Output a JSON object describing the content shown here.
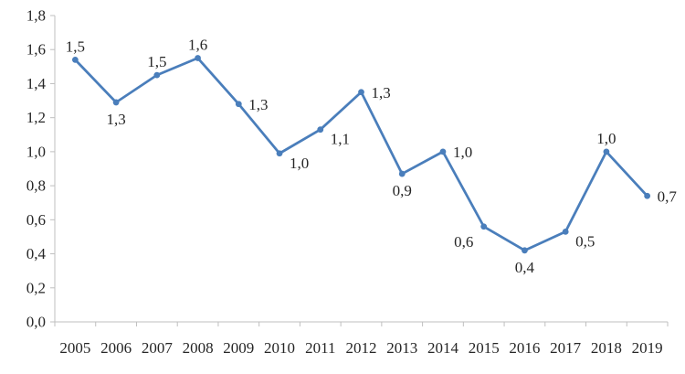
{
  "chart_data": {
    "type": "line",
    "title": "",
    "xlabel": "",
    "ylabel": "",
    "x": [
      "2005",
      "2006",
      "2007",
      "2008",
      "2009",
      "2010",
      "2011",
      "2012",
      "2013",
      "2014",
      "2015",
      "2016",
      "2017",
      "2018",
      "2019"
    ],
    "series": [
      {
        "name": "series-1",
        "values": [
          1.54,
          1.29,
          1.45,
          1.55,
          1.28,
          0.99,
          1.13,
          1.35,
          0.87,
          1.0,
          0.56,
          0.42,
          0.53,
          1.0,
          0.74
        ],
        "labels": [
          "1,5",
          "1,3",
          "1,5",
          "1,6",
          "1,3",
          "1,0",
          "1,1",
          "1,3",
          "0,9",
          "1,0",
          "0,6",
          "0,4",
          "0,5",
          "1,0",
          "0,7"
        ],
        "label_placements": [
          "above",
          "below",
          "above",
          "above",
          "right",
          "below-right",
          "below-right",
          "right",
          "below",
          "right",
          "below-left",
          "below",
          "below-right",
          "above",
          "right"
        ],
        "color": "#4a7ebb",
        "marker": "circle"
      }
    ],
    "ylim": [
      0,
      1.8
    ],
    "y_ticks": [
      {
        "value": 0.0,
        "label": "0,0"
      },
      {
        "value": 0.2,
        "label": "0,2"
      },
      {
        "value": 0.4,
        "label": "0,4"
      },
      {
        "value": 0.6,
        "label": "0,6"
      },
      {
        "value": 0.8,
        "label": "0,8"
      },
      {
        "value": 1.0,
        "label": "1,0"
      },
      {
        "value": 1.2,
        "label": "1,2"
      },
      {
        "value": 1.4,
        "label": "1,4"
      },
      {
        "value": 1.6,
        "label": "1,6"
      },
      {
        "value": 1.8,
        "label": "1,8"
      }
    ],
    "grid": false,
    "legend": "none"
  },
  "colors": {
    "line": "#4a7ebb",
    "axis": "#bfbfbf",
    "text": "#262626",
    "background": "#ffffff"
  }
}
